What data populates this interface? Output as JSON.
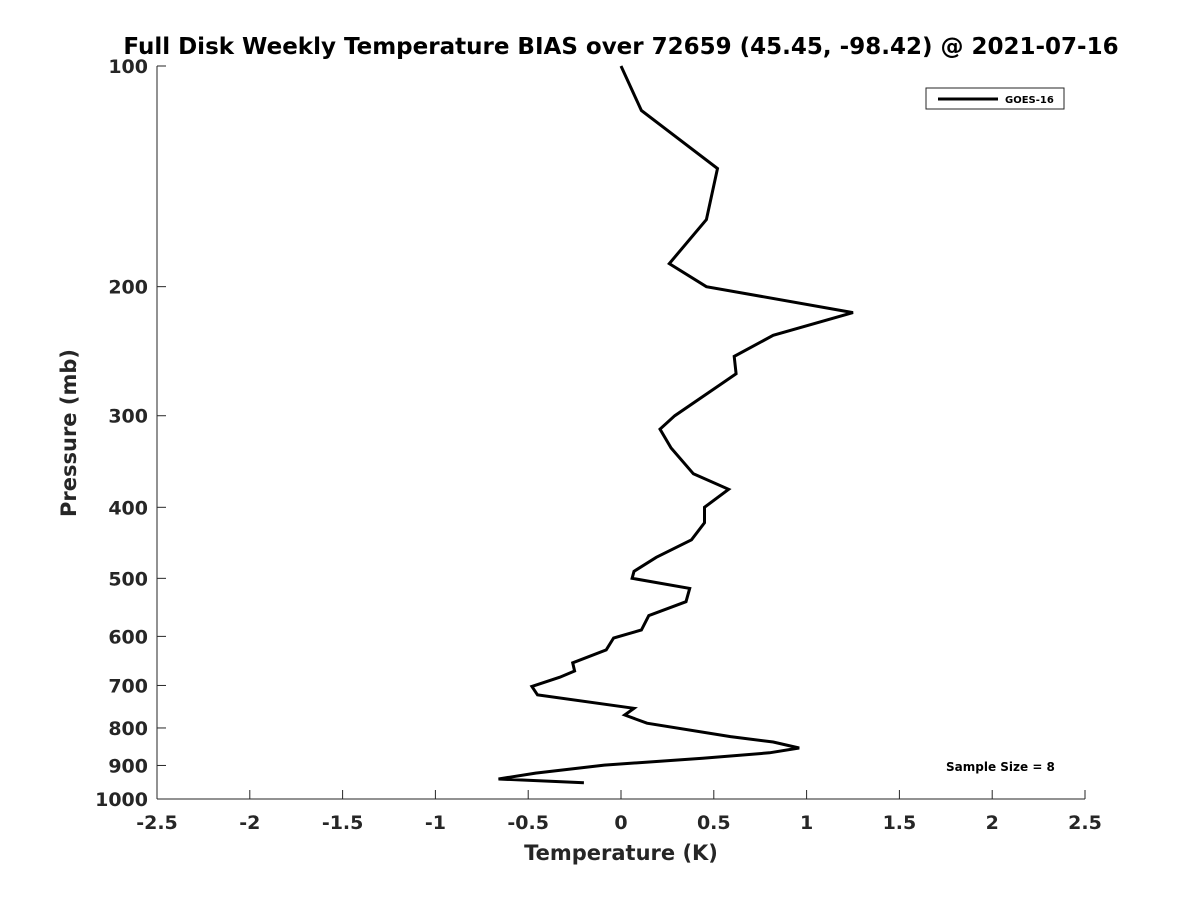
{
  "chart_data": {
    "type": "line",
    "title": "Full Disk Weekly Temperature BIAS over 72659 (45.45, -98.42) @ 2021-07-16",
    "xlabel": "Temperature (K)",
    "ylabel": "Pressure (mb)",
    "xlim": [
      -2.5,
      2.5
    ],
    "ylim": [
      100,
      1000
    ],
    "y_scale": "log",
    "y_reversed": true,
    "grid": false,
    "legend_position": "top-right",
    "x_ticks": [
      -2.5,
      -2,
      -1.5,
      -1,
      -0.5,
      0,
      0.5,
      1,
      1.5,
      2,
      2.5
    ],
    "x_tick_labels": [
      "-2.5",
      "-2",
      "-1.5",
      "-1",
      "-0.5",
      "0",
      "0.5",
      "1",
      "1.5",
      "2",
      "2.5"
    ],
    "y_ticks": [
      100,
      200,
      300,
      400,
      500,
      600,
      700,
      800,
      900,
      1000
    ],
    "y_tick_labels": [
      "100",
      "200",
      "300",
      "400",
      "500",
      "600",
      "700",
      "800",
      "900",
      "1000"
    ],
    "series": [
      {
        "name": "GOES-16",
        "color": "#000000",
        "x": [
          0.0,
          0.11,
          0.52,
          0.46,
          0.26,
          0.46,
          1.25,
          0.82,
          0.61,
          0.62,
          0.29,
          0.21,
          0.27,
          0.39,
          0.58,
          0.45,
          0.45,
          0.38,
          0.19,
          0.07,
          0.06,
          0.37,
          0.35,
          0.15,
          0.11,
          -0.04,
          -0.08,
          -0.26,
          -0.25,
          -0.33,
          -0.48,
          -0.45,
          0.07,
          0.02,
          0.14,
          0.59,
          0.82,
          0.96,
          0.8,
          0.44,
          -0.09,
          -0.46,
          -0.66,
          -0.2
        ],
        "y": [
          100,
          115,
          138,
          162,
          186,
          200,
          217,
          233,
          249,
          263,
          300,
          313,
          332,
          360,
          378,
          400,
          420,
          443,
          468,
          489,
          500,
          516,
          538,
          562,
          588,
          603,
          626,
          652,
          669,
          682,
          702,
          721,
          752,
          768,
          788,
          822,
          836,
          852,
          865,
          880,
          899,
          922,
          939,
          950
        ]
      }
    ],
    "annotations": [
      "Sample Size = 8"
    ]
  }
}
